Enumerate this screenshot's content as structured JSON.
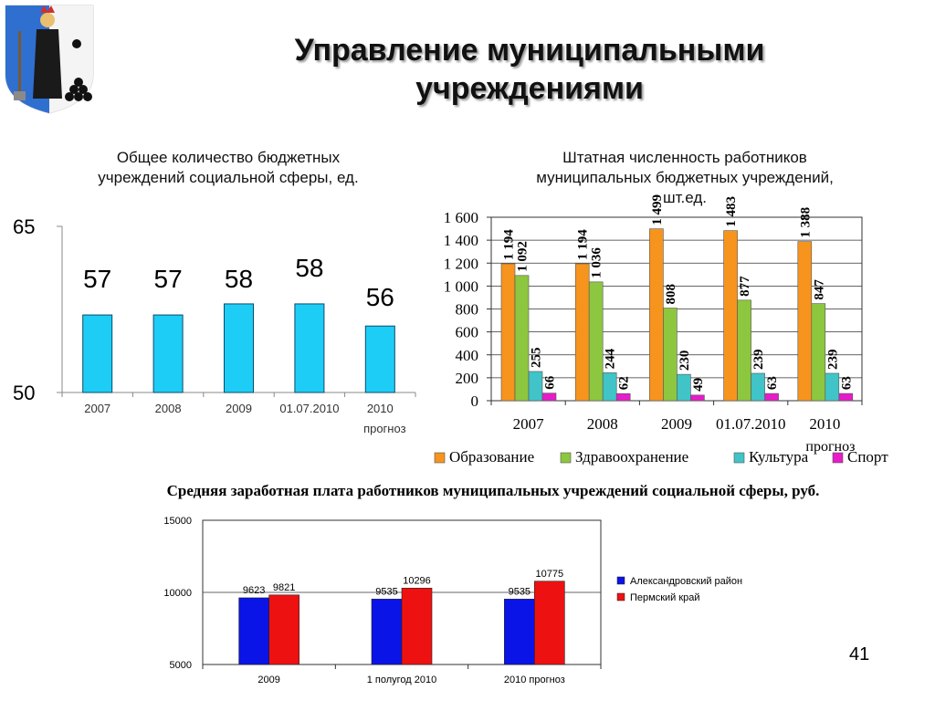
{
  "slide": {
    "title_line1": "Управление муниципальными",
    "title_line2": "учреждениями",
    "page_number": "41",
    "coat_of_arms_icon": "coat-of-arms-icon"
  },
  "chart_data": [
    {
      "type": "bar",
      "title_line1": "Общее количество бюджетных",
      "title_line2": "учреждений социальной сферы, ед.",
      "categories": [
        "2007",
        "2008",
        "2009",
        "01.07.2010",
        "2010"
      ],
      "category_sub": [
        "",
        "",
        "",
        "",
        "прогноз"
      ],
      "values": [
        57,
        57,
        58,
        58,
        56
      ],
      "ylim": [
        50,
        65
      ],
      "y_ticks": [
        50,
        65
      ],
      "bar_color": "#1ECDF5",
      "grid": false
    },
    {
      "type": "bar",
      "title_line1": "Штатная численность работников",
      "title_line2": "муниципальных бюджетных учреждений,",
      "title_line3": "шт.ед.",
      "categories": [
        "2007",
        "2008",
        "2009",
        "01.07.2010",
        "2010"
      ],
      "category_sub": [
        "",
        "",
        "",
        "",
        "прогноз"
      ],
      "series": [
        {
          "name": "Образование",
          "values": [
            1194,
            1194,
            1499,
            1483,
            1388
          ],
          "labels": [
            "1 194",
            "1 194",
            "1 499",
            "1 483",
            "1 388"
          ],
          "color": "#F7941D"
        },
        {
          "name": "Здравоохранение",
          "values": [
            1092,
            1036,
            808,
            877,
            847
          ],
          "labels": [
            "1 092",
            "1 036",
            "808",
            "877",
            "847"
          ],
          "color": "#8DC63F"
        },
        {
          "name": "Культура",
          "values": [
            255,
            244,
            230,
            239,
            239
          ],
          "labels": [
            "255",
            "244",
            "230",
            "239",
            "239"
          ],
          "color": "#40C4C8"
        },
        {
          "name": "Спорт",
          "values": [
            66,
            62,
            49,
            63,
            63
          ],
          "labels": [
            "66",
            "62",
            "49",
            "63",
            "63"
          ],
          "color": "#E61CC8"
        }
      ],
      "ylim": [
        0,
        1600
      ],
      "y_ticks": [
        0,
        200,
        400,
        600,
        800,
        1000,
        1200,
        1400,
        1600
      ],
      "y_tick_labels": [
        "0",
        "200",
        "400",
        "600",
        "800",
        "1 000",
        "1 200",
        "1 400",
        "1 600"
      ],
      "legend": "bottom",
      "grid": true
    },
    {
      "type": "bar",
      "title": "Средняя заработная плата работников муниципальных учреждений социальной сферы, руб.",
      "categories": [
        "2009",
        "1 полугод 2010",
        "2010 прогноз"
      ],
      "series": [
        {
          "name": "Александровский район",
          "values": [
            9623,
            9535,
            9535
          ],
          "color": "#0A14E6"
        },
        {
          "name": "Пермский край",
          "values": [
            9821,
            10296,
            10775
          ],
          "color": "#EE1111"
        }
      ],
      "ylim": [
        5000,
        15000
      ],
      "y_ticks": [
        5000,
        10000,
        15000
      ],
      "legend": "right",
      "grid": true
    }
  ]
}
